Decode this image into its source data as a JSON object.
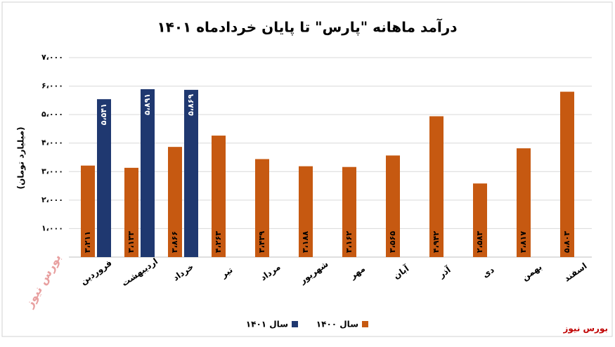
{
  "chart_data": {
    "type": "bar",
    "title": "درآمد ماهانه \"پارس\" تا پایان خردادماه ۱۴۰۱",
    "y_label": "(میلیارد تومان)",
    "watermark": "بورس نیوز",
    "categories": [
      "فروردین",
      "اردیبهشت",
      "خرداد",
      "تیر",
      "مرداد",
      "شهریور",
      "مهر",
      "آبان",
      "آذر",
      "دی",
      "بهمن",
      "اسفند"
    ],
    "series": [
      {
        "name": "سال ۱۴۰۰",
        "color": "#c65911",
        "values": [
          3211,
          3133,
          3866,
          4263,
          3439,
          3188,
          3162,
          3565,
          4942,
          2583,
          3817,
          5803
        ],
        "value_labels": [
          "۳،۲۱۱",
          "۳،۱۳۳",
          "۳،۸۶۶",
          "۴،۲۶۳",
          "۳،۴۳۹",
          "۳،۱۸۸",
          "۳،۱۶۲",
          "۳،۵۶۵",
          "۴،۹۴۲",
          "۲،۵۸۳",
          "۳،۸۱۷",
          "۵،۸۰۳"
        ]
      },
      {
        "name": "سال ۱۴۰۱",
        "color": "#1f3870",
        "values": [
          5541,
          5891,
          5869,
          null,
          null,
          null,
          null,
          null,
          null,
          null,
          null,
          null
        ],
        "value_labels": [
          "۵،۵۴۱",
          "۵،۸۹۱",
          "۵،۸۶۹",
          null,
          null,
          null,
          null,
          null,
          null,
          null,
          null,
          null
        ]
      }
    ],
    "ylim": [
      0,
      7000
    ],
    "yticks": [
      {
        "value": 1000,
        "label": "۱،۰۰۰"
      },
      {
        "value": 2000,
        "label": "۲،۰۰۰"
      },
      {
        "value": 3000,
        "label": "۳،۰۰۰"
      },
      {
        "value": 4000,
        "label": "۴،۰۰۰"
      },
      {
        "value": 5000,
        "label": "۵،۰۰۰"
      },
      {
        "value": 6000,
        "label": "۶،۰۰۰"
      },
      {
        "value": 7000,
        "label": "۷،۰۰۰"
      }
    ],
    "grid": true
  }
}
